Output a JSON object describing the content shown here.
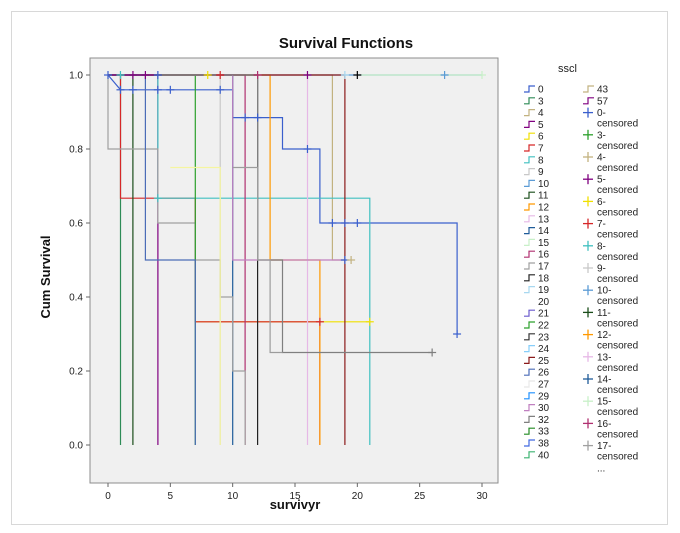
{
  "chart_data": {
    "type": "line",
    "title": "Survival Functions",
    "xlabel": "survivyr",
    "ylabel": "Cum Survival",
    "xlim": [
      0,
      30
    ],
    "ylim": [
      0,
      1
    ],
    "xticks": [
      "0",
      "5",
      "10",
      "15",
      "20",
      "25",
      "30"
    ],
    "yticks": [
      "0.0",
      "0.2",
      "0.4",
      "0.6",
      "0.8",
      "1.0"
    ],
    "legend_title": "sscl",
    "legend_position": "right",
    "legend_col1": [
      {
        "label": "0",
        "color": "#3a5fcd"
      },
      {
        "label": "3",
        "color": "#2e8b57"
      },
      {
        "label": "4",
        "color": "#c2b280"
      },
      {
        "label": "5",
        "color": "#800080"
      },
      {
        "label": "6",
        "color": "#f0e000"
      },
      {
        "label": "7",
        "color": "#d62728"
      },
      {
        "label": "8",
        "color": "#40c0c0"
      },
      {
        "label": "9",
        "color": "#c8c8c8"
      },
      {
        "label": "10",
        "color": "#5b9bd5"
      },
      {
        "label": "11",
        "color": "#1a4d1a"
      },
      {
        "label": "12",
        "color": "#ff9900"
      },
      {
        "label": "13",
        "color": "#e6b8e6"
      },
      {
        "label": "14",
        "color": "#1f5c99"
      },
      {
        "label": "15",
        "color": "#c8f0c8"
      },
      {
        "label": "16",
        "color": "#b03070"
      },
      {
        "label": "17",
        "color": "#a0a0a0"
      },
      {
        "label": "18",
        "color": "#222222"
      },
      {
        "label": "19",
        "color": "#a8d8f0"
      },
      {
        "label": "20",
        "color": "#ffffff"
      },
      {
        "label": "21",
        "color": "#6a5acd"
      },
      {
        "label": "22",
        "color": "#2ca02c"
      },
      {
        "label": "23",
        "color": "#333333"
      },
      {
        "label": "24",
        "color": "#87cefa"
      },
      {
        "label": "25",
        "color": "#8b1a1a"
      },
      {
        "label": "26",
        "color": "#4b6cb7"
      },
      {
        "label": "27",
        "color": "#e8e8e8"
      },
      {
        "label": "29",
        "color": "#1e90ff"
      },
      {
        "label": "30",
        "color": "#c080c0"
      },
      {
        "label": "32",
        "color": "#7f7f7f"
      },
      {
        "label": "33",
        "color": "#228b22"
      },
      {
        "label": "38",
        "color": "#4169e1"
      },
      {
        "label": "40",
        "color": "#3cb371"
      }
    ],
    "legend_col2": [
      {
        "label": "43",
        "color": "#c2b280",
        "kind": "line"
      },
      {
        "label": "57",
        "color": "#800080",
        "kind": "line"
      },
      {
        "label": "0-\ncensored",
        "color": "#3a5fcd",
        "kind": "cross"
      },
      {
        "label": "3-\ncensored",
        "color": "#2ca02c",
        "kind": "cross"
      },
      {
        "label": "4-\ncensored",
        "color": "#c2b280",
        "kind": "cross"
      },
      {
        "label": "5-\ncensored",
        "color": "#800080",
        "kind": "cross"
      },
      {
        "label": "6-\ncensored",
        "color": "#f0e000",
        "kind": "cross"
      },
      {
        "label": "7-\ncensored",
        "color": "#d62728",
        "kind": "cross"
      },
      {
        "label": "8-\ncensored",
        "color": "#40c0c0",
        "kind": "cross"
      },
      {
        "label": "9-\ncensored",
        "color": "#c8c8c8",
        "kind": "cross"
      },
      {
        "label": "10-\ncensored",
        "color": "#5b9bd5",
        "kind": "cross"
      },
      {
        "label": "11-\ncensored",
        "color": "#1a4d1a",
        "kind": "cross"
      },
      {
        "label": "12-\ncensored",
        "color": "#ff9900",
        "kind": "cross"
      },
      {
        "label": "13-\ncensored",
        "color": "#e6b8e6",
        "kind": "cross"
      },
      {
        "label": "14-\ncensored",
        "color": "#1f5c99",
        "kind": "cross"
      },
      {
        "label": "15-\ncensored",
        "color": "#c8f0c8",
        "kind": "cross"
      },
      {
        "label": "16-\ncensored",
        "color": "#b03070",
        "kind": "cross"
      },
      {
        "label": "17-\ncensored",
        "color": "#a0a0a0",
        "kind": "cross"
      },
      {
        "label": "...",
        "color": "#ffffff",
        "kind": "none"
      }
    ],
    "series": [
      {
        "name": "0",
        "color": "#3a5fcd",
        "points": [
          [
            0,
            1.0
          ],
          [
            1,
            0.96
          ],
          [
            10,
            0.96
          ],
          [
            10,
            0.885
          ],
          [
            14,
            0.885
          ],
          [
            14,
            0.8
          ],
          [
            17,
            0.8
          ],
          [
            17,
            0.6
          ],
          [
            28,
            0.6
          ],
          [
            28,
            0.3
          ]
        ]
      },
      {
        "name": "3",
        "color": "#2e8b57",
        "points": [
          [
            0,
            1.0
          ],
          [
            1,
            1.0
          ],
          [
            1,
            0.0
          ]
        ]
      },
      {
        "name": "4",
        "color": "#c2b280",
        "points": [
          [
            0,
            1.0
          ],
          [
            18,
            1.0
          ],
          [
            18,
            0.5
          ],
          [
            19,
            0.5
          ]
        ]
      },
      {
        "name": "5",
        "color": "#800080",
        "points": [
          [
            0,
            1.0
          ],
          [
            4,
            1.0
          ],
          [
            4,
            0.0
          ]
        ]
      },
      {
        "name": "6",
        "color": "#f0e000",
        "points": [
          [
            7,
            0.333
          ],
          [
            21,
            0.333
          ]
        ]
      },
      {
        "name": "7",
        "color": "#d62728",
        "points": [
          [
            0,
            1.0
          ],
          [
            1,
            1.0
          ],
          [
            1,
            0.667
          ],
          [
            7,
            0.667
          ],
          [
            7,
            0.333
          ],
          [
            17,
            0.333
          ],
          [
            17,
            0.0
          ]
        ]
      },
      {
        "name": "8",
        "color": "#40c0c0",
        "points": [
          [
            0,
            1.0
          ],
          [
            4,
            1.0
          ],
          [
            4,
            0.667
          ],
          [
            21,
            0.667
          ],
          [
            21,
            0.0
          ]
        ]
      },
      {
        "name": "9",
        "color": "#c8c8c8",
        "points": [
          [
            0,
            1.0
          ],
          [
            9,
            1.0
          ],
          [
            9,
            0.0
          ]
        ]
      },
      {
        "name": "10",
        "color": "#5b9bd5",
        "points": [
          [
            0,
            1.0
          ],
          [
            30,
            1.0
          ]
        ]
      },
      {
        "name": "11",
        "color": "#1a4d1a",
        "points": [
          [
            0,
            1.0
          ],
          [
            2,
            1.0
          ],
          [
            2,
            0.0
          ]
        ]
      },
      {
        "name": "12",
        "color": "#ff9900",
        "points": [
          [
            0,
            1.0
          ],
          [
            13,
            1.0
          ],
          [
            13,
            0.5
          ],
          [
            17,
            0.5
          ],
          [
            17,
            0.0
          ]
        ]
      },
      {
        "name": "13",
        "color": "#e6b8e6",
        "points": [
          [
            0,
            1.0
          ],
          [
            16,
            1.0
          ],
          [
            16,
            0.0
          ]
        ]
      },
      {
        "name": "14",
        "color": "#1f5c99",
        "points": [
          [
            0,
            1.0
          ],
          [
            10,
            1.0
          ],
          [
            10,
            0.0
          ]
        ]
      },
      {
        "name": "15",
        "color": "#c8f0c8",
        "points": [
          [
            20,
            1.0
          ],
          [
            30,
            1.0
          ]
        ]
      },
      {
        "name": "16",
        "color": "#b03070",
        "points": [
          [
            0,
            1.0
          ],
          [
            11,
            1.0
          ],
          [
            11,
            0.0
          ]
        ]
      },
      {
        "name": "17",
        "color": "#a0a0a0",
        "points": [
          [
            0,
            1.0
          ],
          [
            0,
            0.8
          ],
          [
            4,
            0.8
          ],
          [
            4,
            0.6
          ],
          [
            7,
            0.6
          ],
          [
            7,
            0.5
          ],
          [
            9,
            0.5
          ],
          [
            9,
            0.4
          ],
          [
            10,
            0.4
          ],
          [
            10,
            0.2
          ],
          [
            11,
            0.2
          ],
          [
            11,
            0.0
          ]
        ]
      },
      {
        "name": "18",
        "color": "#222222",
        "points": [
          [
            0,
            1.0
          ],
          [
            12,
            1.0
          ],
          [
            12,
            0.0
          ]
        ]
      },
      {
        "name": "22",
        "color": "#2ca02c",
        "points": [
          [
            0,
            1.0
          ],
          [
            7,
            1.0
          ],
          [
            7,
            0.0
          ]
        ]
      },
      {
        "name": "25",
        "color": "#8b1a1a",
        "points": [
          [
            0,
            1.0
          ],
          [
            19,
            1.0
          ],
          [
            19,
            0.0
          ]
        ]
      },
      {
        "name": "26",
        "color": "#4b6cb7",
        "points": [
          [
            0,
            1.0
          ],
          [
            3,
            1.0
          ],
          [
            3,
            0.5
          ],
          [
            7,
            0.5
          ],
          [
            7,
            0.0
          ]
        ]
      },
      {
        "name": "30",
        "color": "#c080c0",
        "points": [
          [
            0,
            1.0
          ],
          [
            10,
            1.0
          ],
          [
            10,
            0.5
          ],
          [
            19,
            0.5
          ]
        ]
      },
      {
        "name": "32",
        "color": "#7f7f7f",
        "points": [
          [
            0,
            1.0
          ],
          [
            12,
            1.0
          ],
          [
            12,
            0.5
          ],
          [
            14,
            0.5
          ],
          [
            14,
            0.25
          ],
          [
            26,
            0.25
          ]
        ]
      },
      {
        "name": "40",
        "color": "#9c9c9c",
        "points": [
          [
            10,
            0.75
          ],
          [
            12,
            0.75
          ],
          [
            12,
            0.5
          ],
          [
            13,
            0.5
          ],
          [
            13,
            0.25
          ],
          [
            14,
            0.25
          ]
        ]
      },
      {
        "name": "43",
        "color": "#f5f5a0",
        "points": [
          [
            5,
            0.75
          ],
          [
            9,
            0.75
          ],
          [
            9,
            0.0
          ]
        ]
      },
      {
        "name": "57",
        "color": "#800080",
        "points": [
          [
            0,
            1.0
          ],
          [
            4,
            1.0
          ]
        ]
      }
    ],
    "censored": [
      {
        "x": 0,
        "y": 1.0,
        "color": "#3a5fcd"
      },
      {
        "x": 1,
        "y": 0.96,
        "color": "#3a5fcd"
      },
      {
        "x": 2,
        "y": 0.96,
        "color": "#3a5fcd"
      },
      {
        "x": 4,
        "y": 0.96,
        "color": "#3a5fcd"
      },
      {
        "x": 5,
        "y": 0.96,
        "color": "#3a5fcd"
      },
      {
        "x": 9,
        "y": 0.96,
        "color": "#3a5fcd"
      },
      {
        "x": 11,
        "y": 0.885,
        "color": "#3a5fcd"
      },
      {
        "x": 12,
        "y": 0.885,
        "color": "#3a5fcd"
      },
      {
        "x": 16,
        "y": 0.8,
        "color": "#3a5fcd"
      },
      {
        "x": 18,
        "y": 0.6,
        "color": "#3a5fcd"
      },
      {
        "x": 19,
        "y": 0.6,
        "color": "#3a5fcd"
      },
      {
        "x": 20,
        "y": 0.6,
        "color": "#3a5fcd"
      },
      {
        "x": 28,
        "y": 0.3,
        "color": "#3a5fcd"
      },
      {
        "x": 19,
        "y": 0.5,
        "color": "#3a5fcd"
      },
      {
        "x": 1,
        "y": 1.0,
        "color": "#40c0c0"
      },
      {
        "x": 2,
        "y": 1.0,
        "color": "#800080"
      },
      {
        "x": 3,
        "y": 1.0,
        "color": "#800080"
      },
      {
        "x": 4,
        "y": 1.0,
        "color": "#3a5fcd"
      },
      {
        "x": 8,
        "y": 1.0,
        "color": "#f0e000"
      },
      {
        "x": 9,
        "y": 1.0,
        "color": "#d62728"
      },
      {
        "x": 12,
        "y": 1.0,
        "color": "#b03070"
      },
      {
        "x": 16,
        "y": 1.0,
        "color": "#800080"
      },
      {
        "x": 19,
        "y": 1.0,
        "color": "#a8d8f0"
      },
      {
        "x": 20,
        "y": 1.0,
        "color": "#000000"
      },
      {
        "x": 27,
        "y": 1.0,
        "color": "#5b9bd5"
      },
      {
        "x": 30,
        "y": 1.0,
        "color": "#c8f0c8"
      },
      {
        "x": 17,
        "y": 0.333,
        "color": "#d62728"
      },
      {
        "x": 21,
        "y": 0.333,
        "color": "#f0e000"
      },
      {
        "x": 19.5,
        "y": 0.5,
        "color": "#c2b280"
      },
      {
        "x": 4,
        "y": 0.667,
        "color": "#40c0c0"
      },
      {
        "x": 26,
        "y": 0.25,
        "color": "#7f7f7f"
      }
    ]
  }
}
